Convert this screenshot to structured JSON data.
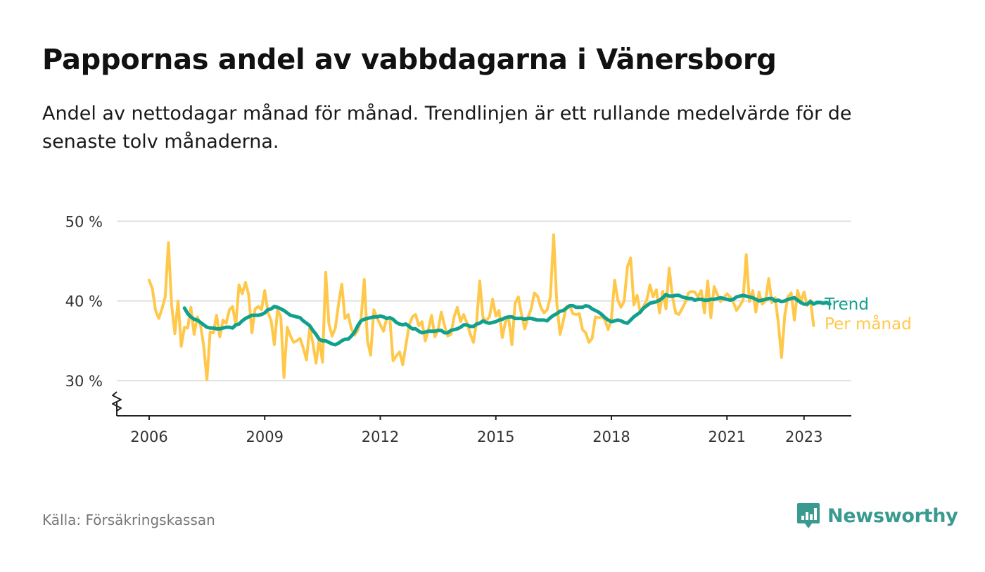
{
  "header": {
    "title": "Pappornas andel av vabbdagarna i Vänersborg",
    "subtitle": "Andel av nettodagar månad för månad. Trendlinjen är ett rullande medelvärde för de senaste tolv månaderna."
  },
  "footer": {
    "source": "Källa: Försäkringskassan",
    "brand": "Newsworthy"
  },
  "colors": {
    "trend": "#12a08e",
    "monthly": "#ffc84a",
    "grid": "#d9d9d9",
    "axis": "#222222",
    "brand": "#3a9a8f"
  },
  "chart_data": {
    "type": "line",
    "title": "Pappornas andel av vabbdagarna i Vänersborg",
    "xlabel": "",
    "ylabel": "",
    "x_start": "2006-01",
    "x_end": "2023-04",
    "xlim": [
      2006.0,
      2023.95
    ],
    "ylim": [
      25.5,
      50
    ],
    "y_ticks": [
      {
        "value": 30,
        "label": "30 %"
      },
      {
        "value": 40,
        "label": "40 %"
      },
      {
        "value": 50,
        "label": "50 %"
      }
    ],
    "x_ticks": [
      {
        "value": 2006,
        "label": "2006"
      },
      {
        "value": 2009,
        "label": "2009"
      },
      {
        "value": 2012,
        "label": "2012"
      },
      {
        "value": 2015,
        "label": "2015"
      },
      {
        "value": 2018,
        "label": "2018"
      },
      {
        "value": 2021,
        "label": "2021"
      },
      {
        "value": 2023,
        "label": "2023"
      }
    ],
    "grid": "horizontal",
    "axis_break": true,
    "legend": "end-of-line labels",
    "series": [
      {
        "name": "Per månad",
        "color": "#ffc84a",
        "start": "2006-01",
        "values": [
          42.6,
          41.5,
          38.8,
          37.8,
          39.0,
          40.5,
          47.3,
          39.5,
          35.9,
          40.0,
          34.3,
          36.7,
          36.6,
          39.2,
          35.8,
          38.0,
          37.0,
          34.3,
          30.1,
          36.1,
          36.0,
          38.2,
          35.5,
          37.6,
          37.2,
          38.9,
          39.3,
          37.0,
          42.0,
          40.9,
          42.3,
          40.8,
          36.0,
          39.0,
          39.3,
          38.9,
          41.3,
          38.6,
          37.5,
          34.5,
          38.9,
          38.0,
          30.4,
          36.7,
          35.6,
          34.8,
          35.0,
          35.3,
          34.1,
          32.6,
          36.6,
          34.7,
          32.2,
          35.3,
          32.3,
          43.6,
          37.1,
          35.6,
          36.6,
          39.6,
          42.1,
          37.8,
          38.3,
          36.5,
          35.7,
          36.3,
          37.6,
          42.7,
          35.0,
          33.2,
          38.9,
          37.9,
          37.0,
          36.2,
          37.8,
          37.7,
          32.5,
          33.1,
          33.6,
          32.0,
          34.5,
          37.0,
          38.0,
          38.3,
          36.9,
          37.4,
          35.0,
          36.4,
          38.2,
          35.5,
          36.3,
          38.6,
          36.9,
          35.6,
          35.8,
          38.0,
          39.2,
          37.4,
          38.3,
          37.2,
          35.9,
          34.8,
          37.3,
          42.5,
          37.9,
          37.5,
          38.0,
          40.2,
          38.1,
          38.8,
          35.4,
          37.4,
          37.8,
          34.5,
          39.7,
          40.5,
          38.3,
          36.5,
          37.9,
          39.0,
          41.0,
          40.6,
          39.2,
          38.5,
          38.9,
          40.5,
          48.3,
          39.7,
          35.8,
          37.5,
          39.3,
          39.4,
          38.4,
          38.3,
          38.4,
          36.4,
          36.0,
          34.8,
          35.3,
          38.0,
          37.9,
          38.0,
          37.6,
          36.4,
          37.8,
          42.6,
          40.1,
          39.2,
          40.0,
          44.3,
          45.4,
          39.5,
          40.7,
          38.5,
          39.3,
          40.1,
          42.0,
          40.5,
          41.4,
          38.5,
          41.2,
          39.0,
          44.1,
          40.6,
          38.5,
          38.3,
          39.0,
          39.8,
          41.0,
          41.2,
          41.1,
          40.5,
          41.3,
          38.5,
          42.5,
          37.9,
          41.8,
          40.8,
          39.9,
          40.4,
          40.9,
          40.5,
          39.8,
          38.8,
          39.4,
          40.1,
          45.8,
          39.9,
          41.3,
          38.6,
          41.1,
          39.6,
          40.0,
          42.8,
          39.8,
          40.4,
          37.3,
          32.9,
          38.2,
          40.5,
          41.0,
          37.6,
          41.3,
          39.9,
          41.1,
          39.4,
          40.1,
          36.9
        ]
      },
      {
        "name": "Trend",
        "color": "#12a08e",
        "start": "2006-12",
        "values": [
          39.1,
          38.4,
          38.0,
          37.7,
          37.6,
          37.3,
          37.0,
          36.7,
          36.6,
          36.6,
          36.5,
          36.5,
          36.6,
          36.7,
          36.7,
          36.6,
          37.0,
          37.1,
          37.5,
          37.8,
          38.0,
          38.2,
          38.2,
          38.2,
          38.3,
          38.5,
          38.9,
          39.0,
          39.3,
          39.2,
          39.0,
          38.8,
          38.5,
          38.2,
          38.1,
          38.0,
          37.9,
          37.5,
          37.2,
          36.9,
          36.3,
          35.8,
          35.2,
          35.0,
          35.0,
          34.8,
          34.6,
          34.5,
          34.7,
          35.0,
          35.2,
          35.2,
          35.6,
          36.1,
          36.9,
          37.5,
          37.7,
          37.8,
          37.9,
          38.0,
          38.0,
          38.1,
          38.0,
          37.8,
          37.9,
          37.7,
          37.3,
          37.1,
          37.0,
          37.1,
          36.8,
          36.5,
          36.5,
          36.2,
          36.0,
          36.1,
          36.2,
          36.2,
          36.2,
          36.3,
          36.3,
          36.0,
          36.0,
          36.3,
          36.4,
          36.5,
          36.7,
          37.0,
          37.0,
          36.8,
          36.8,
          37.1,
          37.2,
          37.5,
          37.3,
          37.2,
          37.3,
          37.4,
          37.6,
          37.7,
          37.9,
          38.0,
          38.0,
          37.8,
          37.8,
          37.8,
          37.7,
          37.8,
          37.8,
          37.7,
          37.6,
          37.6,
          37.6,
          37.5,
          37.9,
          38.2,
          38.4,
          38.7,
          38.8,
          39.1,
          39.4,
          39.4,
          39.2,
          39.2,
          39.2,
          39.4,
          39.3,
          39.0,
          38.8,
          38.6,
          38.3,
          37.9,
          37.6,
          37.4,
          37.5,
          37.6,
          37.5,
          37.3,
          37.2,
          37.6,
          38.0,
          38.3,
          38.6,
          39.1,
          39.4,
          39.7,
          39.8,
          39.9,
          40.1,
          40.4,
          40.8,
          40.6,
          40.6,
          40.7,
          40.7,
          40.5,
          40.4,
          40.3,
          40.3,
          40.1,
          40.2,
          40.2,
          40.1,
          40.1,
          40.2,
          40.2,
          40.3,
          40.4,
          40.3,
          40.2,
          40.1,
          40.2,
          40.5,
          40.6,
          40.7,
          40.6,
          40.5,
          40.4,
          40.2,
          40.0,
          40.1,
          40.2,
          40.3,
          40.3,
          40.0,
          40.1,
          39.9,
          40.0,
          40.2,
          40.3,
          40.4,
          40.1,
          39.8,
          39.6,
          39.6,
          39.9,
          39.6,
          39.8,
          39.8,
          39.7,
          39.8,
          39.6
        ]
      }
    ]
  }
}
